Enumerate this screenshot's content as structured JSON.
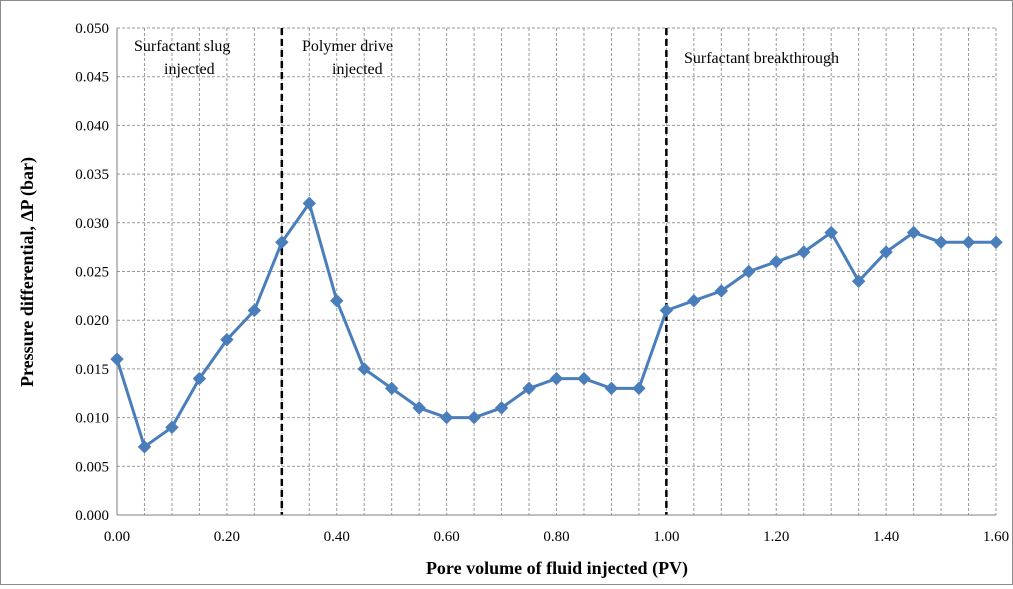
{
  "chart_data": {
    "type": "line",
    "xlabel": "Pore volume of fluid injected (PV)",
    "ylabel": "Pressure differential, ∆P (bar)",
    "xlim": [
      0,
      1.6
    ],
    "ylim": [
      0,
      0.05
    ],
    "x_ticks": [
      "0.00",
      "0.20",
      "0.40",
      "0.60",
      "0.80",
      "1.00",
      "1.20",
      "1.40",
      "1.60"
    ],
    "y_ticks": [
      "0.000",
      "0.005",
      "0.010",
      "0.015",
      "0.020",
      "0.025",
      "0.030",
      "0.035",
      "0.040",
      "0.045",
      "0.050"
    ],
    "grid": true,
    "legend": "none",
    "series": [
      {
        "x": [
          0.0,
          0.05,
          0.1,
          0.15,
          0.2,
          0.25,
          0.3,
          0.35,
          0.4,
          0.45,
          0.5,
          0.55,
          0.6,
          0.65,
          0.7,
          0.75,
          0.8,
          0.85,
          0.9,
          0.95,
          1.0,
          1.05,
          1.1,
          1.15,
          1.2,
          1.25,
          1.3,
          1.35,
          1.4,
          1.45,
          1.5,
          1.55,
          1.6
        ],
        "y": [
          0.016,
          0.007,
          0.009,
          0.014,
          0.018,
          0.021,
          0.028,
          0.032,
          0.022,
          0.015,
          0.013,
          0.011,
          0.01,
          0.01,
          0.011,
          0.013,
          0.014,
          0.014,
          0.013,
          0.013,
          0.021,
          0.022,
          0.023,
          0.025,
          0.026,
          0.027,
          0.029,
          0.024,
          0.027,
          0.029,
          0.028,
          0.028,
          0.028
        ],
        "color": "#4a7ebb",
        "marker": "diamond"
      }
    ],
    "vlines": [
      {
        "x": 0.3,
        "style": "dashed",
        "color": "#000000"
      },
      {
        "x": 1.0,
        "style": "dashed",
        "color": "#000000"
      }
    ],
    "annotations": [
      {
        "lines": [
          "Surfactant slug",
          "injected"
        ]
      },
      {
        "lines": [
          "Polymer drive",
          "injected"
        ]
      },
      {
        "lines": [
          "Surfactant breakthrough"
        ]
      }
    ]
  }
}
